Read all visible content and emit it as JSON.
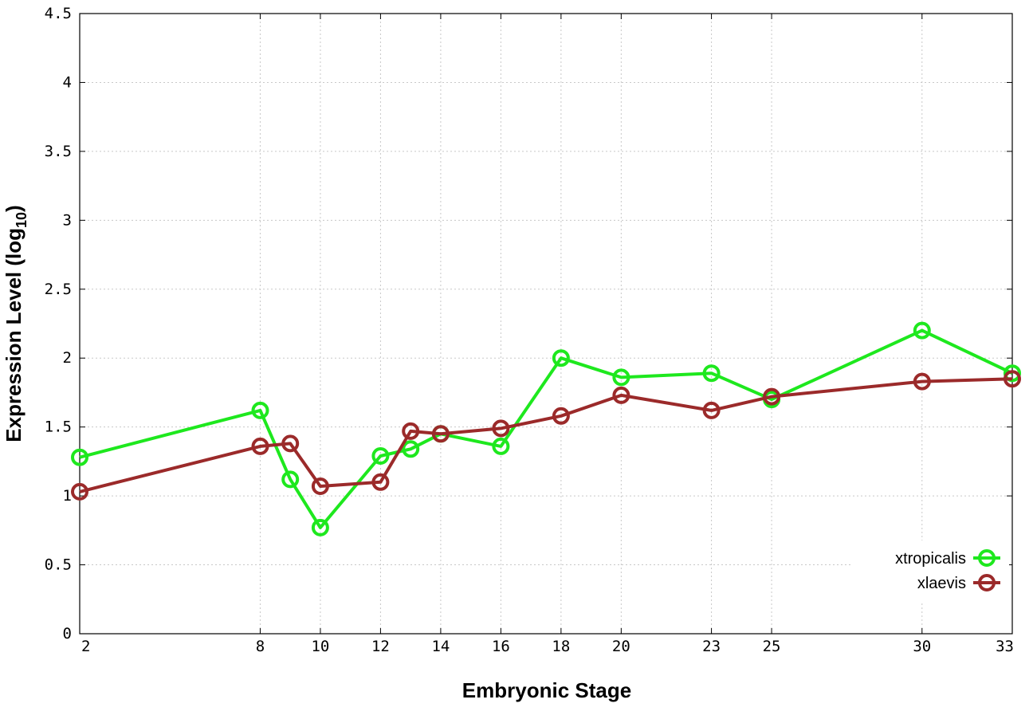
{
  "chart_data": {
    "type": "line",
    "xlabel": "Embryonic Stage",
    "ylabel_main": "Expression Level (log",
    "ylabel_sub": "10",
    "ylabel_close": ")",
    "ylim": [
      0,
      4.5
    ],
    "y_ticks": [
      "0",
      "0.5",
      "1",
      "1.5",
      "2",
      "2.5",
      "3",
      "3.5",
      "4",
      "4.5"
    ],
    "x_ticks": [
      "2",
      "8",
      "10",
      "12",
      "14",
      "16",
      "18",
      "20",
      "23",
      "25",
      "30",
      "33"
    ],
    "categories": [
      "2",
      "8",
      "9",
      "10",
      "12",
      "13",
      "14",
      "16",
      "18",
      "20",
      "23",
      "25",
      "30",
      "33"
    ],
    "grid": true,
    "legend_position": "bottom-right",
    "series": [
      {
        "name": "xtropicalis",
        "color": "#1ee81e",
        "x": [
          2,
          8,
          9,
          10,
          12,
          13,
          14,
          16,
          18,
          20,
          23,
          25,
          30,
          33
        ],
        "values": [
          1.28,
          1.62,
          1.12,
          0.77,
          1.29,
          1.34,
          1.45,
          1.36,
          2.0,
          1.86,
          1.89,
          1.7,
          2.2,
          1.89
        ]
      },
      {
        "name": "xlaevis",
        "color": "#9b2a2a",
        "x": [
          2,
          8,
          9,
          10,
          12,
          13,
          14,
          16,
          18,
          20,
          23,
          25,
          30,
          33
        ],
        "values": [
          1.03,
          1.36,
          1.38,
          1.07,
          1.1,
          1.47,
          1.45,
          1.49,
          1.58,
          1.73,
          1.62,
          1.72,
          1.83,
          1.85
        ]
      }
    ]
  }
}
